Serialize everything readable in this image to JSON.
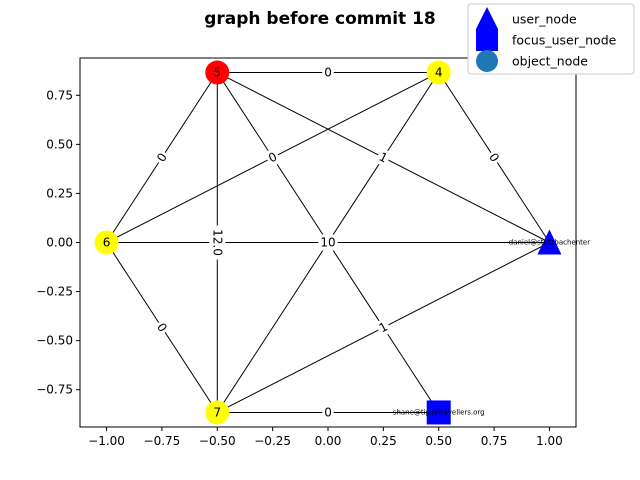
{
  "chart_data": {
    "type": "network",
    "title": "graph before commit 18",
    "xlim": [
      -1.12,
      1.12
    ],
    "ylim": [
      -0.94,
      0.94
    ],
    "xticks": [
      -1.0,
      -0.75,
      -0.5,
      -0.25,
      0.0,
      0.25,
      0.5,
      0.75,
      1.0
    ],
    "xtick_labels": [
      "−1.00",
      "−0.75",
      "−0.50",
      "−0.25",
      "0.00",
      "0.25",
      "0.50",
      "0.75",
      "1.00"
    ],
    "yticks": [
      0.75,
      0.5,
      0.25,
      0.0,
      -0.25,
      -0.5,
      -0.75
    ],
    "ytick_labels": [
      "0.75",
      "0.50",
      "0.25",
      "0.00",
      "−0.25",
      "−0.50",
      "−0.75"
    ],
    "nodes": [
      {
        "id": "5",
        "label": "5",
        "x": -0.5,
        "y": 0.866,
        "kind": "object_node",
        "color": "#ff0000"
      },
      {
        "id": "4",
        "label": "4",
        "x": 0.5,
        "y": 0.866,
        "kind": "object_node",
        "color": "#ffff00"
      },
      {
        "id": "6",
        "label": "6",
        "x": -1.0,
        "y": 0.0,
        "kind": "object_node",
        "color": "#ffff00"
      },
      {
        "id": "7",
        "label": "7",
        "x": -0.5,
        "y": -0.866,
        "kind": "object_node",
        "color": "#ffff00"
      },
      {
        "id": "daniel",
        "label": "daniel@stutzbachenter",
        "x": 1.0,
        "y": 0.0,
        "kind": "user_node",
        "color": "#0000ff"
      },
      {
        "id": "shane",
        "label": "shane@tipsytravellers.org",
        "x": 0.5,
        "y": -0.866,
        "kind": "focus_user_node",
        "color": "#0000ff"
      }
    ],
    "edges": [
      {
        "source": "5",
        "target": "4",
        "label": "0"
      },
      {
        "source": "5",
        "target": "6",
        "label": "0"
      },
      {
        "source": "5",
        "target": "7",
        "label": "12.0"
      },
      {
        "source": "5",
        "target": "shane",
        "label": "0"
      },
      {
        "source": "5",
        "target": "daniel",
        "label": "1"
      },
      {
        "source": "4",
        "target": "6",
        "label": "0"
      },
      {
        "source": "4",
        "target": "7",
        "label": "1"
      },
      {
        "source": "4",
        "target": "daniel",
        "label": "0"
      },
      {
        "source": "6",
        "target": "7",
        "label": "0"
      },
      {
        "source": "6",
        "target": "daniel",
        "label": "10"
      },
      {
        "source": "7",
        "target": "shane",
        "label": "0"
      },
      {
        "source": "7",
        "target": "daniel",
        "label": "1"
      }
    ],
    "legend": {
      "placement": "top-right",
      "entries": [
        {
          "label": "user_node",
          "marker": "triangle",
          "color": "#0000ff"
        },
        {
          "label": "focus_user_node",
          "marker": "square",
          "color": "#0000ff"
        },
        {
          "label": "object_node",
          "marker": "circle",
          "color": "#1f77b4"
        }
      ]
    }
  }
}
